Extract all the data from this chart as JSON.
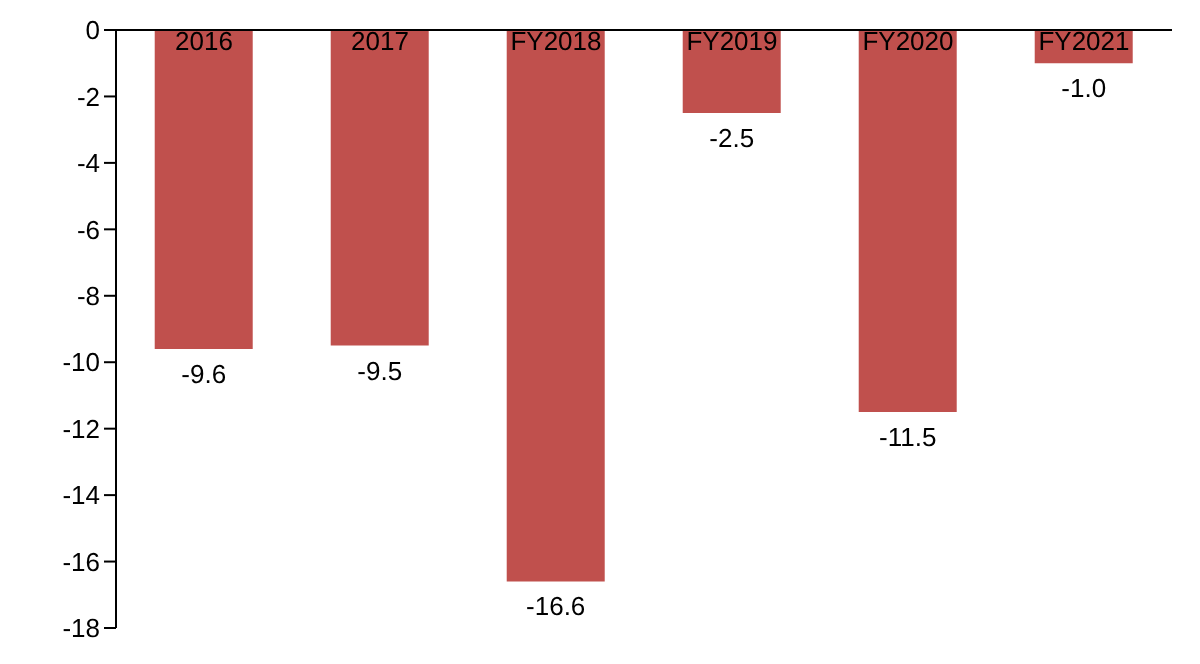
{
  "chart_data": {
    "type": "bar",
    "categories": [
      "2016",
      "2017",
      "FY2018",
      "FY2019",
      "FY2020",
      "FY2021"
    ],
    "values": [
      -9.6,
      -9.5,
      -16.6,
      -2.5,
      -11.5,
      -1.0
    ],
    "value_labels": [
      "-9.6",
      "-9.5",
      "-16.6",
      "-2.5",
      "-11.5",
      "-1.0"
    ],
    "color": "#c0504d",
    "ylim": [
      -18,
      0
    ],
    "yticks": [
      -18,
      -16,
      -14,
      -12,
      -10,
      -8,
      -6,
      -4,
      -2,
      0
    ],
    "grid": false
  }
}
